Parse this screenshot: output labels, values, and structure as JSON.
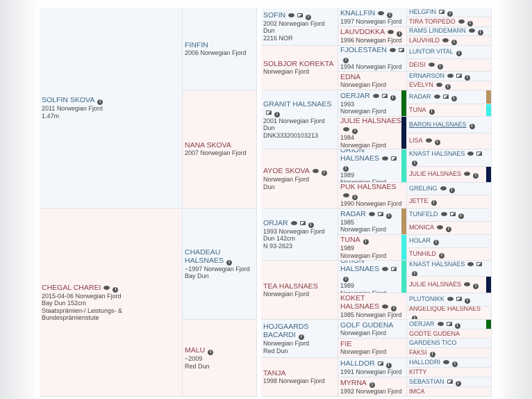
{
  "colors": {
    "sire_bg": "#f3f7fc",
    "dam_bg": "#fdf3f3",
    "sire_name": "#3f6581",
    "dam_name": "#8a3e45"
  },
  "pedigree": {
    "gen1": [
      {
        "name": "SOLFIN SKOVA",
        "icons": [
          "info"
        ],
        "lines": [
          "2011 Norwegian Fjord",
          "1.47m"
        ]
      },
      {
        "name": "CHEGAL CHAREI",
        "icons": [
          "chat",
          "info"
        ],
        "lines": [
          "2015-04-06 Norwegian Fjord",
          "Bay Dun 152cm",
          "Staatsprämien-/ Leistungs- & Bundesprämienstute"
        ]
      }
    ],
    "gen2": [
      {
        "name": "FINFIN",
        "icons": [],
        "lines": [
          "2006 Norwegian Fjord"
        ]
      },
      {
        "name": "NANA SKOVA",
        "icons": [],
        "lines": [
          "2007 Norwegian Fjord"
        ]
      },
      {
        "name": "CHADEAU HALSNAES",
        "icons": [
          "info"
        ],
        "lines": [
          "~1997 Norwegian Fjord",
          "Bay Dun"
        ]
      },
      {
        "name": "MALU",
        "icons": [
          "info"
        ],
        "lines": [
          "~2009",
          "Red Dun"
        ]
      }
    ],
    "gen3": [
      {
        "name": "SOFIN",
        "icons": [
          "chat",
          "image",
          "info"
        ],
        "lines": [
          "2002 Norwegian Fjord",
          "Dun",
          "2216 NOR"
        ]
      },
      {
        "name": "SOLBJOR KOREKTA",
        "icons": [],
        "lines": [
          "Norwegian Fjord"
        ]
      },
      {
        "name": "GRANIT HALSNAES",
        "icons": [
          "image",
          "info"
        ],
        "lines": [
          "2001 Norwegian Fjord",
          "Dun",
          "DNK333200103213"
        ]
      },
      {
        "name": "AYOE SKOVA",
        "icons": [
          "chat",
          "info"
        ],
        "lines": [
          "Norwegian Fjord",
          "Dun"
        ]
      },
      {
        "name": "ORJAR",
        "icons": [
          "chat",
          "image",
          "info"
        ],
        "lines": [
          "1993 Norwegian Fjord",
          "Dun 142cm",
          "N 93-2623"
        ]
      },
      {
        "name": "TEA HALSNAES",
        "icons": [],
        "lines": [
          "Norwegian Fjord"
        ]
      },
      {
        "name": "HOJGAARDS BACARDI",
        "icons": [
          "info"
        ],
        "lines": [
          "Norwegian Fjord",
          "Red Dun"
        ]
      },
      {
        "name": "TANJA",
        "icons": [],
        "lines": [
          "1998 Norwegian Fjord"
        ]
      }
    ],
    "gen4": [
      {
        "name": "KNALLFIN",
        "icons": [
          "chat",
          "info"
        ],
        "lines": [
          "1997 Norwegian Fjord"
        ]
      },
      {
        "name": "LAUVDOKKA",
        "icons": [
          "chat",
          "info"
        ],
        "lines": [
          "1996 Norwegian Fjord"
        ]
      },
      {
        "name": "FJOLESTAEN",
        "icons": [
          "chat",
          "image",
          "info"
        ],
        "lines": [
          "1994 Norwegian Fjord"
        ]
      },
      {
        "name": "EDNA",
        "icons": [],
        "lines": [
          "Norwegian Fjord"
        ]
      },
      {
        "name": "OERJAR",
        "icons": [
          "chat",
          "image",
          "info"
        ],
        "lines": [
          "1993",
          "Norwegian Fjord"
        ],
        "bar": "#0b6b12"
      },
      {
        "name": "JULIE HALSNAES",
        "icons": [
          "chat",
          "info"
        ],
        "lines": [
          "1984",
          "Norwegian Fjord"
        ],
        "bar": "#0b1a45"
      },
      {
        "name": "ORION HALSNAES",
        "icons": [
          "chat",
          "image",
          "info"
        ],
        "lines": [
          "1989",
          "Norwegian Fjord"
        ],
        "bar": "#3ee6c3"
      },
      {
        "name": "PUK HALSNAES",
        "icons": [
          "chat",
          "info"
        ],
        "lines": [
          "1990 Norwegian Fjord"
        ]
      },
      {
        "name": "RADAR",
        "icons": [
          "chat",
          "image",
          "info"
        ],
        "lines": [
          "1985",
          "Norwegian Fjord"
        ],
        "bar": "#b8935f"
      },
      {
        "name": "TUNA",
        "icons": [
          "info"
        ],
        "lines": [
          "1989",
          "Norwegian Fjord"
        ],
        "bar": "#3ef0e6"
      },
      {
        "name": "ORION HALSNAES",
        "icons": [
          "chat",
          "image",
          "info"
        ],
        "lines": [
          "1989",
          "Norwegian Fjord"
        ],
        "bar": "#3ee6c3"
      },
      {
        "name": "KOKET HALSNAES",
        "icons": [
          "chat",
          "info"
        ],
        "lines": [
          "1985 Norwegian Fjord"
        ]
      },
      {
        "name": "GOLF GUDENA",
        "icons": [],
        "lines": [
          "Norwegian Fjord"
        ]
      },
      {
        "name": "FIE",
        "icons": [],
        "lines": [
          "Norwegian Fjord"
        ]
      },
      {
        "name": "HALLDOR",
        "icons": [
          "image",
          "info"
        ],
        "lines": [
          "1991 Norwegian Fjord"
        ]
      },
      {
        "name": "MYRNA",
        "icons": [
          "info"
        ],
        "lines": [
          "1992 Norwegian Fjord"
        ]
      }
    ],
    "gen5": [
      {
        "name": "HELGFIN",
        "icons": [
          "image",
          "info"
        ]
      },
      {
        "name": "TIRA TORPEDO",
        "icons": [
          "chat",
          "info"
        ]
      },
      {
        "name": "RAMS LINDEMANN",
        "icons": [
          "chat",
          "info"
        ]
      },
      {
        "name": "LAUVHILD",
        "icons": [
          "chat",
          "info"
        ]
      },
      {
        "name": "LUNTOR VITAL",
        "icons": [
          "info"
        ]
      },
      {
        "name": "DEISI",
        "icons": [
          "chat",
          "info"
        ]
      },
      {
        "name": "ERNARSON",
        "icons": [
          "chat",
          "image",
          "info"
        ]
      },
      {
        "name": "EVELYN",
        "icons": [
          "chat",
          "info"
        ]
      },
      {
        "name": "RADAR",
        "icons": [
          "chat",
          "image",
          "info"
        ],
        "bar": "#b8935f"
      },
      {
        "name": "TUNA",
        "icons": [
          "info"
        ],
        "bar": "#3ef0e6"
      },
      {
        "name": "BARON HALSNAES",
        "icons": [
          "info"
        ],
        "link": true
      },
      {
        "name": "LISA",
        "icons": [
          "chat",
          "info"
        ]
      },
      {
        "name": "KNAST HALSNAES",
        "icons": [
          "chat",
          "image",
          "info"
        ]
      },
      {
        "name": "JULIE HALSNAES",
        "icons": [
          "chat",
          "info"
        ],
        "bar": "#0b1a45"
      },
      {
        "name": "GRELING",
        "icons": [
          "chat",
          "info"
        ]
      },
      {
        "name": "JETTE",
        "icons": [
          "info"
        ]
      },
      {
        "name": "TUNFELD",
        "icons": [
          "chat",
          "image",
          "info"
        ]
      },
      {
        "name": "MONICA",
        "icons": [
          "chat",
          "info"
        ]
      },
      {
        "name": "HOLAR",
        "icons": [
          "info"
        ]
      },
      {
        "name": "TUNHILD",
        "icons": [
          "info"
        ]
      },
      {
        "name": "KNAST HALSNAES",
        "icons": [
          "chat",
          "image",
          "info"
        ]
      },
      {
        "name": "JULIE HALSNAES",
        "icons": [
          "chat",
          "info"
        ],
        "bar": "#0b1a45"
      },
      {
        "name": "PLUTONIKK",
        "icons": [
          "chat",
          "image",
          "info"
        ]
      },
      {
        "name": "ANGELIQUE HALSNAES",
        "icons": [
          "info"
        ]
      },
      {
        "name": "OERJAR",
        "icons": [
          "chat",
          "image",
          "info"
        ],
        "bar": "#0b6b12"
      },
      {
        "name": "GODTE GUDENA",
        "icons": []
      },
      {
        "name": "GARDENS TICO",
        "icons": []
      },
      {
        "name": "FAKSI",
        "icons": [
          "info"
        ]
      },
      {
        "name": "HALLODRI",
        "icons": [
          "chat",
          "info"
        ]
      },
      {
        "name": "KITTY",
        "icons": []
      },
      {
        "name": "SEBASTIAN",
        "icons": [
          "image",
          "info"
        ]
      },
      {
        "name": "IMCA",
        "icons": []
      }
    ]
  }
}
